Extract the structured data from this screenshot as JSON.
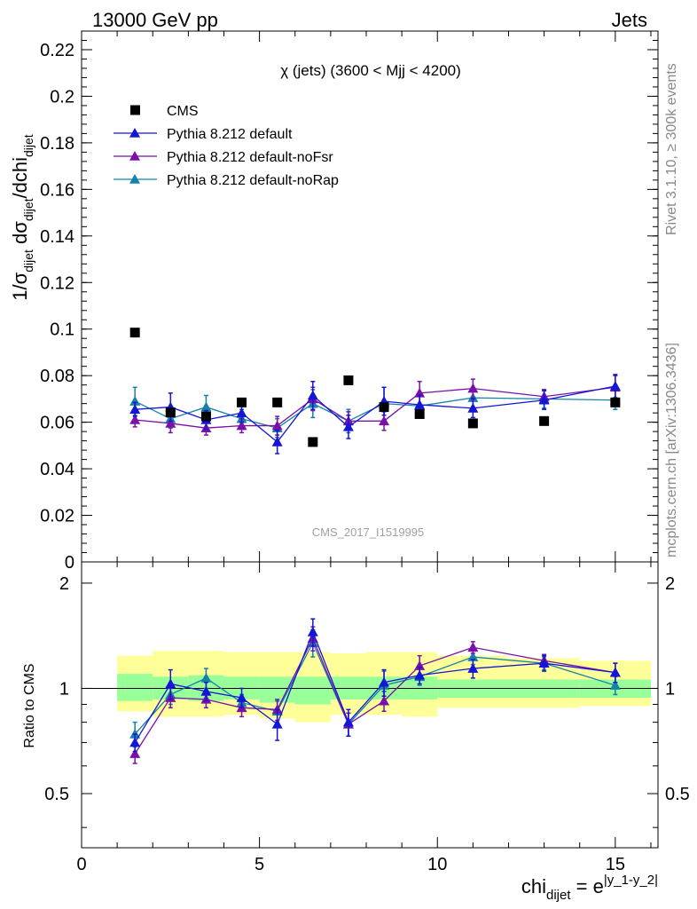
{
  "header": {
    "left": "13000 GeV pp",
    "right": "Jets"
  },
  "side_text": {
    "rivet": "Rivet 3.1.10, ≥ 300k events",
    "mcplots": "mcplots.cern.ch [arXiv:1306.3436]"
  },
  "watermark": "CMS_2017_I1519995",
  "plot_title": "χ (jets) (3600 < Mjj < 4200)",
  "axes": {
    "ylabel_main": "1/σ_dijet dσ_dijet/dchi_dijet",
    "ylabel_ratio": "Ratio to CMS",
    "xlabel": "chi_dijet = e^|y_1-y_2|"
  },
  "colors": {
    "cms": "#000000",
    "default": "#1515d6",
    "noFsr": "#7a10a8",
    "noRap": "#1482a8",
    "band_inner": "#99ff99",
    "band_outer": "#ffff99"
  },
  "chart_data": [
    {
      "type": "scatter",
      "panel": "main",
      "xlim": [
        0,
        16.2
      ],
      "ylim": [
        0,
        0.228
      ],
      "yticks": [
        0.02,
        0.04,
        0.06,
        0.08,
        0.1,
        0.12,
        0.14,
        0.16,
        0.18,
        0.2,
        0.22
      ],
      "ytick_labels": [
        "0.02",
        "0.04",
        "0.06",
        "0.08",
        "0.1",
        "0.12",
        "0.14",
        "0.16",
        "0.18",
        "0.2",
        "0.22"
      ],
      "x_bins": [
        [
          1,
          2
        ],
        [
          2,
          3
        ],
        [
          3,
          4
        ],
        [
          4,
          5
        ],
        [
          5,
          6
        ],
        [
          6,
          7
        ],
        [
          7,
          8
        ],
        [
          8,
          9
        ],
        [
          9,
          10
        ],
        [
          10,
          12
        ],
        [
          12,
          14
        ],
        [
          14,
          16
        ]
      ],
      "x_centers": [
        1.5,
        2.5,
        3.5,
        4.5,
        5.5,
        6.5,
        7.5,
        8.5,
        9.5,
        11,
        13,
        15
      ],
      "series": [
        {
          "name": "CMS",
          "style": "markers",
          "values": [
            0.0985,
            0.0642,
            0.0625,
            0.0685,
            0.0685,
            0.0515,
            0.078,
            0.0665,
            0.0635,
            0.0595,
            0.0605,
            0.0685
          ]
        },
        {
          "name": "Pythia 8.212 default",
          "style": "line",
          "values": [
            0.0655,
            0.0665,
            0.061,
            0.064,
            0.0515,
            0.0715,
            0.058,
            0.069,
            0.0675,
            0.066,
            0.0695,
            0.0755
          ],
          "errors": [
            0.003,
            0.006,
            0.004,
            0.004,
            0.005,
            0.006,
            0.005,
            0.006,
            0.004,
            0.004,
            0.004,
            0.005
          ]
        },
        {
          "name": "Pythia 8.212 default-noFsr",
          "style": "line",
          "values": [
            0.061,
            0.0595,
            0.0575,
            0.0585,
            0.0585,
            0.07,
            0.0605,
            0.0605,
            0.0725,
            0.0745,
            0.071,
            0.075
          ],
          "errors": [
            0.003,
            0.004,
            0.003,
            0.003,
            0.004,
            0.005,
            0.004,
            0.004,
            0.005,
            0.004,
            0.003,
            0.005
          ]
        },
        {
          "name": "Pythia 8.212 default-noRap",
          "style": "line",
          "values": [
            0.069,
            0.0615,
            0.0665,
            0.0615,
            0.0575,
            0.068,
            0.0605,
            0.068,
            0.067,
            0.0705,
            0.07,
            0.0695
          ],
          "errors": [
            0.006,
            0.004,
            0.005,
            0.004,
            0.004,
            0.006,
            0.005,
            0.007,
            0.004,
            0.004,
            0.004,
            0.004
          ]
        }
      ],
      "legend": "top-left"
    },
    {
      "type": "line",
      "panel": "ratio",
      "xlim": [
        0,
        16.2
      ],
      "ylim": [
        0.35,
        2.3
      ],
      "log_y": true,
      "yticks": [
        0.5,
        1,
        2
      ],
      "ytick_labels": [
        "0.5",
        "1",
        "2"
      ],
      "xticks": [
        0,
        5,
        10,
        15
      ],
      "xtick_labels": [
        "0",
        "5",
        "10",
        "15"
      ],
      "bands": {
        "inner": [
          [
            0.92,
            1.1
          ],
          [
            0.93,
            1.08
          ],
          [
            0.92,
            1.09
          ],
          [
            0.93,
            1.08
          ],
          [
            0.91,
            1.08
          ],
          [
            0.9,
            1.08
          ],
          [
            0.93,
            1.08
          ],
          [
            0.93,
            1.08
          ],
          [
            0.93,
            1.08
          ],
          [
            0.94,
            1.06
          ],
          [
            0.94,
            1.06
          ],
          [
            0.94,
            1.06
          ]
        ],
        "outer": [
          [
            0.86,
            1.24
          ],
          [
            0.83,
            1.28
          ],
          [
            0.83,
            1.28
          ],
          [
            0.84,
            1.27
          ],
          [
            0.82,
            1.27
          ],
          [
            0.8,
            1.27
          ],
          [
            0.84,
            1.26
          ],
          [
            0.84,
            1.27
          ],
          [
            0.83,
            1.27
          ],
          [
            0.88,
            1.24
          ],
          [
            0.88,
            1.22
          ],
          [
            0.89,
            1.2
          ]
        ]
      },
      "series": [
        {
          "name": "Pythia 8.212 default",
          "values": [
            0.7,
            1.03,
            0.98,
            0.94,
            0.79,
            1.45,
            0.8,
            1.04,
            1.09,
            1.14,
            1.18,
            1.11
          ],
          "errors": [
            0.04,
            0.1,
            0.06,
            0.06,
            0.08,
            0.13,
            0.07,
            0.09,
            0.06,
            0.07,
            0.06,
            0.07
          ]
        },
        {
          "name": "Pythia 8.212 default-noFsr",
          "values": [
            0.65,
            0.94,
            0.93,
            0.88,
            0.87,
            1.39,
            0.79,
            0.92,
            1.16,
            1.31,
            1.2,
            1.11
          ],
          "errors": [
            0.04,
            0.06,
            0.05,
            0.05,
            0.06,
            0.11,
            0.06,
            0.06,
            0.08,
            0.05,
            0.05,
            0.07
          ]
        },
        {
          "name": "Pythia 8.212 default-noRap",
          "values": [
            0.74,
            0.96,
            1.07,
            0.91,
            0.86,
            1.35,
            0.79,
            1.02,
            1.08,
            1.23,
            1.18,
            1.02
          ],
          "errors": [
            0.06,
            0.06,
            0.07,
            0.05,
            0.06,
            0.12,
            0.06,
            0.1,
            0.06,
            0.06,
            0.05,
            0.06
          ]
        }
      ]
    }
  ]
}
